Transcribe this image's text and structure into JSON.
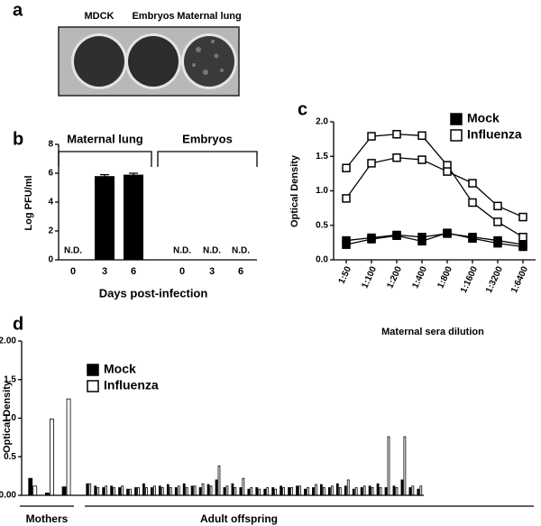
{
  "panel_a": {
    "label": "a",
    "plates": [
      "MDCK",
      "Embryos",
      "Maternal lung"
    ]
  },
  "chart_data": [
    {
      "type": "bar",
      "label": "b",
      "ylabel": "Log PFU/ml",
      "xlabel": "Days post-infection",
      "groups": [
        "Maternal lung",
        "Embryos"
      ],
      "categories": [
        "0",
        "3",
        "6",
        "0",
        "3",
        "6"
      ],
      "values": [
        null,
        5.8,
        5.9,
        null,
        null,
        null
      ],
      "errors": [
        null,
        0.1,
        0.1,
        null,
        null,
        null
      ],
      "value_labels": [
        "N.D.",
        null,
        null,
        "N.D.",
        "N.D.",
        "N.D."
      ],
      "color": "#000000",
      "ylim": [
        0,
        8
      ],
      "yticks": [
        0,
        2,
        4,
        6,
        8
      ]
    },
    {
      "type": "line",
      "label": "c",
      "ylabel": "Optical Density",
      "xlabel": "Maternal sera dilution",
      "categories": [
        "1:50",
        "1:100",
        "1:200",
        "1:400",
        "1:800",
        "1:1600",
        "1:3200",
        "1:6400"
      ],
      "series": [
        {
          "name": "Mock",
          "color": "#000000",
          "lines": [
            [
              0.28,
              0.32,
              0.36,
              0.33,
              0.38,
              0.33,
              0.28,
              0.22
            ],
            [
              0.22,
              0.3,
              0.35,
              0.27,
              0.39,
              0.31,
              0.24,
              0.19
            ]
          ]
        },
        {
          "name": "Influenza",
          "color": "#ffffff",
          "lines": [
            [
              1.33,
              1.79,
              1.82,
              1.8,
              1.37,
              0.83,
              0.55,
              0.33
            ],
            [
              0.89,
              1.4,
              1.48,
              1.45,
              1.28,
              1.11,
              0.78,
              0.62
            ]
          ]
        }
      ],
      "ylim": [
        0,
        2.0
      ],
      "yticks": [
        {
          "value": 0,
          "label": "0.0"
        },
        {
          "value": 0.5,
          "label": "0.5"
        },
        {
          "value": 1.0,
          "label": "1.0"
        },
        {
          "value": 1.5,
          "label": "1.5"
        },
        {
          "value": 2.0,
          "label": "2.0"
        }
      ],
      "legend": "upper right"
    },
    {
      "type": "grouped_bar",
      "label": "d",
      "ylabel": "Optical Density",
      "series": [
        {
          "name": "Mock",
          "color": "#000000"
        },
        {
          "name": "Influenza",
          "color": "#ffffff"
        }
      ],
      "groups": [
        {
          "name": "Mothers",
          "values": [
            [
              0.22,
              0.03,
              0.11
            ],
            [
              0.12,
              0.99,
              1.25
            ]
          ]
        },
        {
          "name": "Adult offspring",
          "values": [
            [
              0.15,
              0.12,
              0.1,
              0.12,
              0.1,
              0.08,
              0.1,
              0.15,
              0.1,
              0.12,
              0.14,
              0.1,
              0.15,
              0.12,
              0.1,
              0.14,
              0.2,
              0.1,
              0.15,
              0.1,
              0.08,
              0.1,
              0.08,
              0.1,
              0.12,
              0.1,
              0.12,
              0.08,
              0.1,
              0.14,
              0.1,
              0.15,
              0.12,
              0.08,
              0.1,
              0.12,
              0.15,
              0.1,
              0.12,
              0.2,
              0.1,
              0.08
            ],
            [
              0.15,
              0.1,
              0.12,
              0.1,
              0.12,
              0.08,
              0.1,
              0.1,
              0.12,
              0.1,
              0.1,
              0.12,
              0.1,
              0.12,
              0.15,
              0.12,
              0.38,
              0.12,
              0.1,
              0.22,
              0.1,
              0.08,
              0.1,
              0.08,
              0.1,
              0.1,
              0.12,
              0.1,
              0.14,
              0.1,
              0.12,
              0.1,
              0.2,
              0.1,
              0.12,
              0.1,
              0.1,
              0.76,
              0.1,
              0.76,
              0.12,
              0.12
            ]
          ]
        }
      ],
      "ylim": [
        0,
        2.0
      ],
      "yticks": [
        {
          "value": 0,
          "label": "0.00"
        },
        {
          "value": 0.5,
          "label": "0.5"
        },
        {
          "value": 1.0,
          "label": "1.0"
        },
        {
          "value": 1.5,
          "label": "1.5"
        },
        {
          "value": 2.0,
          "label": "2.00"
        }
      ],
      "legend": "upper left"
    }
  ]
}
